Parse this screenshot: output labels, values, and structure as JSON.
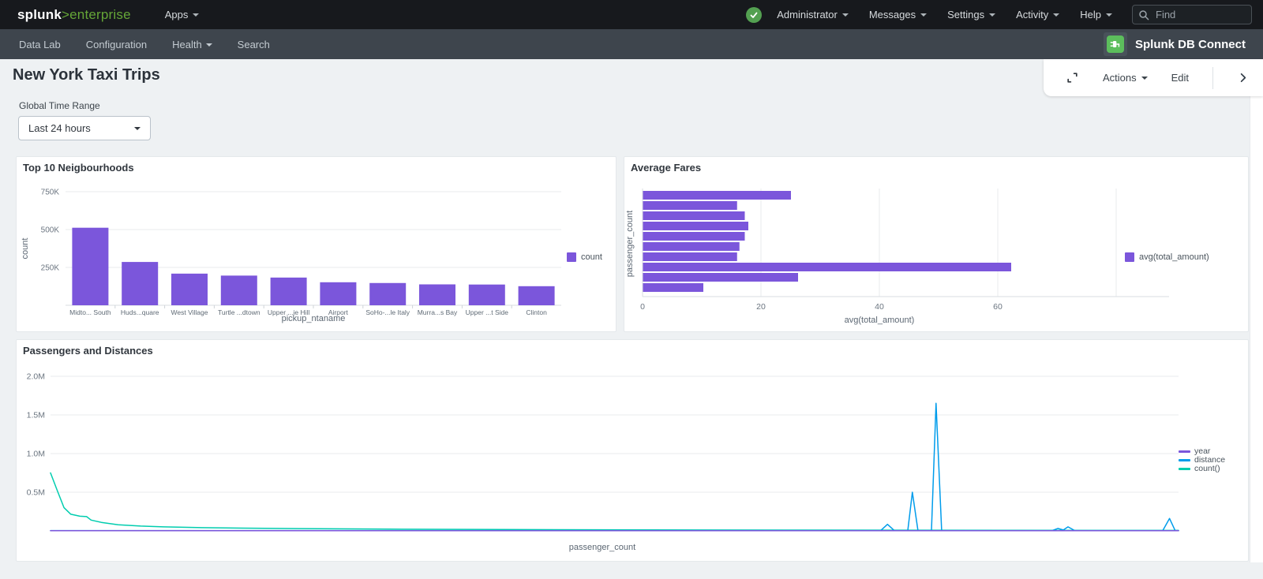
{
  "topnav": {
    "logo_splunk": "splunk",
    "logo_gt": ">",
    "logo_product": "enterprise",
    "apps": "Apps",
    "user_menu": "Administrator",
    "messages": "Messages",
    "settings": "Settings",
    "activity": "Activity",
    "help": "Help",
    "find_placeholder": "Find"
  },
  "appnav": {
    "items": [
      {
        "label": "Data Lab"
      },
      {
        "label": "Configuration"
      },
      {
        "label": "Health"
      },
      {
        "label": "Search"
      }
    ],
    "app_title": "Splunk DB Connect"
  },
  "toolbar": {
    "actions": "Actions",
    "edit": "Edit"
  },
  "page": {
    "title": "New York Taxi Trips",
    "time_range_label": "Global Time Range",
    "time_range_value": "Last 24 hours"
  },
  "colors": {
    "accent_purple": "#7b56db",
    "accent_blue": "#009ceb",
    "accent_teal": "#00cdaf",
    "brand_green": "#65a637",
    "status_ok_green": "#53a051",
    "db_connect_green": "#5cbe5c"
  },
  "chart_data": [
    {
      "type": "bar",
      "title": "Top 10 Neigbourhoods",
      "categories": [
        "Midto... South",
        "Huds...quare",
        "West Village",
        "Turtle ...dtown",
        "Upper ...ie Hill",
        "Airport",
        "SoHo-...le Italy",
        "Murra...s Bay",
        "Upper ...t Side",
        "Clinton"
      ],
      "values": [
        512000,
        286000,
        209000,
        196000,
        183000,
        152000,
        147000,
        138000,
        137000,
        126000
      ],
      "xlabel": "pickup_ntaname",
      "ylabel": "count",
      "ylim": [
        0,
        750000
      ],
      "yticks": [
        250000,
        500000,
        750000
      ],
      "ytick_labels": [
        "250K",
        "500K",
        "750K"
      ],
      "legend": [
        "count"
      ],
      "bar_color": "#7b56db",
      "grid": "horizontal"
    },
    {
      "type": "hbar",
      "title": "Average Fares",
      "values": [
        25,
        15.9,
        17.2,
        17.8,
        17.2,
        16.3,
        15.9,
        62.2,
        26.2,
        10.2
      ],
      "xlabel": "avg(total_amount)",
      "ylabel": "passenger_count",
      "xlim": [
        0,
        84
      ],
      "xticks": [
        0,
        20,
        40,
        60,
        80
      ],
      "xtick_labels": [
        "0",
        "20",
        "40",
        "60",
        ""
      ],
      "legend": [
        "avg(total_amount)"
      ],
      "bar_color": "#7b56db",
      "grid": "vertical"
    },
    {
      "type": "line",
      "title": "Passengers and Distances",
      "xlabel": "passenger_count",
      "ylim": [
        0,
        2100000
      ],
      "yticks": [
        500000,
        1000000,
        1500000,
        2000000
      ],
      "ytick_labels": [
        "0.5M",
        "1.0M",
        "1.5M",
        "2.0M"
      ],
      "legend_position": "right",
      "grid": "horizontal",
      "series": [
        {
          "name": "year",
          "color": "#7b56db",
          "points": [
            [
              0,
              2016
            ],
            [
              100,
              2016
            ]
          ]
        },
        {
          "name": "distance",
          "color": "#009ceb",
          "points": [
            [
              0,
              4000
            ],
            [
              65,
              4000
            ],
            [
              73.6,
              4000
            ],
            [
              74.2,
              85000
            ],
            [
              74.8,
              4000
            ],
            [
              76,
              4000
            ],
            [
              76.4,
              500000
            ],
            [
              76.9,
              4000
            ],
            [
              78.1,
              4000
            ],
            [
              78.5,
              1650000
            ],
            [
              79,
              4000
            ],
            [
              88.8,
              4000
            ],
            [
              89.3,
              32000
            ],
            [
              89.8,
              12000
            ],
            [
              90.2,
              52000
            ],
            [
              90.8,
              4000
            ],
            [
              98.6,
              4000
            ],
            [
              99.2,
              160000
            ],
            [
              99.7,
              4000
            ],
            [
              100,
              4000
            ]
          ]
        },
        {
          "name": "count()",
          "color": "#00cdaf",
          "points": [
            [
              0,
              750000
            ],
            [
              0.6,
              520000
            ],
            [
              1.2,
              300000
            ],
            [
              1.8,
              215000
            ],
            [
              2.6,
              190000
            ],
            [
              3.2,
              185000
            ],
            [
              3.6,
              140000
            ],
            [
              4.5,
              110000
            ],
            [
              6,
              80000
            ],
            [
              8,
              62000
            ],
            [
              10,
              52000
            ],
            [
              13,
              43000
            ],
            [
              17,
              36000
            ],
            [
              22,
              30000
            ],
            [
              30,
              22000
            ],
            [
              45,
              15000
            ],
            [
              65,
              10000
            ],
            [
              85,
              7000
            ],
            [
              100,
              6000
            ]
          ]
        }
      ]
    }
  ]
}
